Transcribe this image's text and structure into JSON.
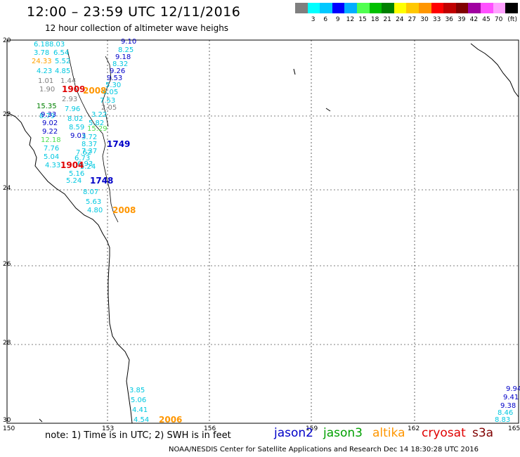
{
  "header": {
    "title": "12:00 – 23:59 UTC 12/11/2016",
    "subtitle": "12 hour collection of altimeter wave heighs"
  },
  "scale": {
    "unit_label": "(ft)",
    "colors": [
      "#7f7f7f",
      "#00ffff",
      "#00c8ff",
      "#0000ff",
      "#00aeff",
      "#50ff50",
      "#00c000",
      "#008000",
      "#ffff00",
      "#ffc800",
      "#ff9600",
      "#ff0000",
      "#c00000",
      "#800000",
      "#a000a0",
      "#ff50ff",
      "#ffa0ff",
      "#000000"
    ],
    "labels": [
      "3",
      "6",
      "9",
      "12",
      "15",
      "18",
      "21",
      "24",
      "27",
      "30",
      "33",
      "36",
      "39",
      "42",
      "45",
      "70"
    ]
  },
  "axes": {
    "lat_labels": [
      "20",
      "22",
      "24",
      "26",
      "28",
      "30"
    ],
    "lon_labels": [
      "150",
      "153",
      "156",
      "159",
      "162",
      "165"
    ]
  },
  "observations": [
    {
      "text": "6.18",
      "color": "#00c8e0"
    },
    {
      "text": "8.03",
      "color": "#00c8e0"
    },
    {
      "text": "3.78",
      "color": "#00c8e0"
    },
    {
      "text": "6.54",
      "color": "#00c8e0"
    },
    {
      "text": "24.33",
      "color": "#ffa000"
    },
    {
      "text": "5.52",
      "color": "#00c8e0"
    },
    {
      "text": "4.23",
      "color": "#00c8e0"
    },
    {
      "text": "4.85",
      "color": "#00c8e0"
    },
    {
      "text": "1.01",
      "color": "#808080"
    },
    {
      "text": "1.44",
      "color": "#808080"
    },
    {
      "text": "1.90",
      "color": "#808080"
    },
    {
      "text": "2.93",
      "color": "#808080"
    },
    {
      "text": "15.35",
      "color": "#008000"
    },
    {
      "text": "8.79",
      "color": "#00c8e0"
    },
    {
      "text": "7.96",
      "color": "#00c8e0"
    },
    {
      "text": "9.33",
      "color": "#0000c8"
    },
    {
      "text": "8.02",
      "color": "#00c8e0"
    },
    {
      "text": "9.02",
      "color": "#0000c8"
    },
    {
      "text": "8.59",
      "color": "#00c8e0"
    },
    {
      "text": "9.22",
      "color": "#0000c8"
    },
    {
      "text": "12.18",
      "color": "#50e050"
    },
    {
      "text": "9.03",
      "color": "#0000c8"
    },
    {
      "text": "7.76",
      "color": "#00c8e0"
    },
    {
      "text": "5.04",
      "color": "#00c8e0"
    },
    {
      "text": "4.33",
      "color": "#00c8e0"
    },
    {
      "text": "5.16",
      "color": "#00c8e0"
    },
    {
      "text": "5.24",
      "color": "#00c8e0"
    },
    {
      "text": "8.07",
      "color": "#00c8e0"
    },
    {
      "text": "5.63",
      "color": "#00c8e0"
    },
    {
      "text": "4.80",
      "color": "#00c8e0"
    },
    {
      "text": "9.10",
      "color": "#0000c8"
    },
    {
      "text": "8.25",
      "color": "#00c8e0"
    },
    {
      "text": "9.18",
      "color": "#0000c8"
    },
    {
      "text": "8.32",
      "color": "#00c8e0"
    },
    {
      "text": "9.26",
      "color": "#0000c8"
    },
    {
      "text": "9.53",
      "color": "#0000c8"
    },
    {
      "text": "5.30",
      "color": "#00c8e0"
    },
    {
      "text": "6.05",
      "color": "#00c8e0"
    },
    {
      "text": "7.53",
      "color": "#00c8e0"
    },
    {
      "text": "2.05",
      "color": "#808080"
    },
    {
      "text": "3.22",
      "color": "#00c8e0"
    },
    {
      "text": "5.82",
      "color": "#00c8e0"
    },
    {
      "text": "15.29",
      "color": "#50e050"
    },
    {
      "text": "3.72",
      "color": "#00c8e0"
    },
    {
      "text": "8.37",
      "color": "#00c8e0"
    },
    {
      "text": "7.37",
      "color": "#00c8e0"
    },
    {
      "text": "6.73",
      "color": "#00c8e0"
    },
    {
      "text": "5.24",
      "color": "#00c8e0"
    },
    {
      "text": "7.62",
      "color": "#00c8e0"
    },
    {
      "text": "6.93",
      "color": "#00c8e0"
    },
    {
      "text": "3.85",
      "color": "#00c8e0"
    },
    {
      "text": "5.06",
      "color": "#00c8e0"
    },
    {
      "text": "4.41",
      "color": "#00c8e0"
    },
    {
      "text": "4.54",
      "color": "#00c8e0"
    },
    {
      "text": "9.94",
      "color": "#0000c8"
    },
    {
      "text": "9.41",
      "color": "#0000c8"
    },
    {
      "text": "9.38",
      "color": "#0000c8"
    },
    {
      "text": "8.46",
      "color": "#00c8e0"
    },
    {
      "text": "8.83",
      "color": "#00c8e0"
    }
  ],
  "pass_times": [
    {
      "text": "1909",
      "color": "#e00000"
    },
    {
      "text": "2008",
      "color": "#ff9600"
    },
    {
      "text": "1749",
      "color": "#0000c8"
    },
    {
      "text": "1904",
      "color": "#e00000"
    },
    {
      "text": "1748",
      "color": "#0000c8"
    },
    {
      "text": "2008",
      "color": "#ff9600"
    },
    {
      "text": "2006",
      "color": "#ff9600"
    }
  ],
  "footer": {
    "note": "note: 1) Time is in UTC; 2) SWH is in feet",
    "legend": [
      {
        "text": "jason2",
        "color": "#0000c8"
      },
      {
        "text": "jason3",
        "color": "#00a000"
      },
      {
        "text": "altika",
        "color": "#ff9600"
      },
      {
        "text": "cryosat",
        "color": "#e00000"
      },
      {
        "text": "s3a",
        "color": "#800000"
      }
    ],
    "credit": "NOAA/NESDIS Center for Satellite Applications and Research   Dec 14 18:30:28 UTC 2016"
  }
}
